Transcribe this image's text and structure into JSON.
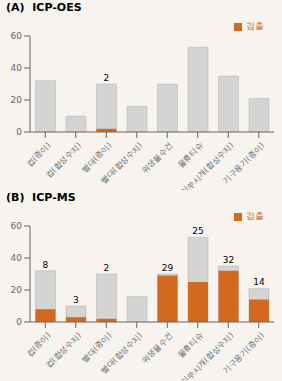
{
  "chart_data": [
    {
      "type": "bar",
      "title": "(A)  ICP-OES",
      "categories": [
        "컵(종이)",
        "컵(합성수지)",
        "빨대(종이)",
        "빨대(합성수지)",
        "위생물수건",
        "물휴티슈",
        "이쑤시개(합성수지)",
        "기구용기(종이)"
      ],
      "series": [
        {
          "color": "#d4d4d4",
          "values": [
            32,
            10,
            30,
            16,
            30,
            53,
            35,
            21
          ]
        },
        {
          "name": "검출",
          "color": "#d2691e",
          "values": [
            0,
            0,
            2,
            0,
            0,
            0,
            0,
            0
          ],
          "value_labels": [
            null,
            null,
            "2",
            null,
            null,
            null,
            null,
            null
          ]
        }
      ],
      "ylim": [
        0,
        60
      ],
      "yticks": [
        0,
        20,
        40,
        60
      ],
      "grid": false,
      "legend": "upper right"
    },
    {
      "type": "bar",
      "title": "(B)  ICP-MS",
      "categories": [
        "컵(종이)",
        "컵(합성수지)",
        "빨대(종이)",
        "빨대(합성수지)",
        "위생물수건",
        "물휴티슈",
        "이쑤시개(합성수지)",
        "기구용기(종이)"
      ],
      "series": [
        {
          "color": "#d4d4d4",
          "values": [
            32,
            10,
            30,
            16,
            30,
            53,
            35,
            21
          ]
        },
        {
          "name": "검출",
          "color": "#d2691e",
          "values": [
            8,
            3,
            2,
            0,
            29,
            25,
            32,
            14
          ],
          "value_labels": [
            "8",
            "3",
            "2",
            null,
            "29",
            "25",
            "32",
            "14"
          ]
        }
      ],
      "ylim": [
        0,
        60
      ],
      "yticks": [
        0,
        20,
        40,
        60
      ],
      "grid": false,
      "legend": "upper right"
    }
  ]
}
